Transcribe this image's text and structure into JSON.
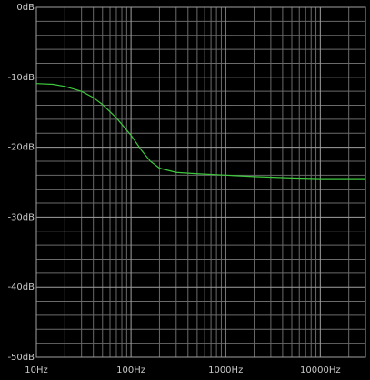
{
  "chart_data": {
    "type": "line",
    "xscale": "log",
    "grid": true,
    "color": "#3ec83e",
    "x": [
      10,
      15,
      20,
      30,
      40,
      50,
      70,
      100,
      130,
      160,
      200,
      300,
      500,
      1000,
      2000,
      5000,
      10000,
      20000,
      30000
    ],
    "values": [
      -10.9,
      -11.0,
      -11.3,
      -12.0,
      -12.9,
      -13.9,
      -15.8,
      -18.3,
      -20.5,
      -22.0,
      -23.0,
      -23.6,
      -23.8,
      -24.0,
      -24.2,
      -24.4,
      -24.5,
      -24.5,
      -24.5
    ],
    "xlim": [
      10,
      30000
    ],
    "ylim": [
      -50,
      0
    ],
    "xticks": [
      {
        "value": 10,
        "label": "10Hz"
      },
      {
        "value": 100,
        "label": "100Hz"
      },
      {
        "value": 1000,
        "label": "1000Hz"
      },
      {
        "value": 10000,
        "label": "10000Hz"
      }
    ],
    "xminorticks": [
      20,
      30,
      40,
      50,
      60,
      70,
      80,
      90,
      200,
      300,
      400,
      500,
      600,
      700,
      800,
      900,
      2000,
      3000,
      4000,
      5000,
      6000,
      7000,
      8000,
      9000,
      20000,
      30000
    ],
    "yticks": [
      {
        "value": 0,
        "label": "0dB"
      },
      {
        "value": -10,
        "label": "-10dB"
      },
      {
        "value": -20,
        "label": "-20dB"
      },
      {
        "value": -30,
        "label": "-30dB"
      },
      {
        "value": -40,
        "label": "-40dB"
      },
      {
        "value": -50,
        "label": "-50dB"
      }
    ],
    "yminorticks": [
      -2,
      -4,
      -6,
      -8,
      -12,
      -14,
      -16,
      -18,
      -22,
      -24,
      -26,
      -28,
      -32,
      -34,
      -36,
      -38,
      -42,
      -44,
      -46,
      -48
    ]
  }
}
